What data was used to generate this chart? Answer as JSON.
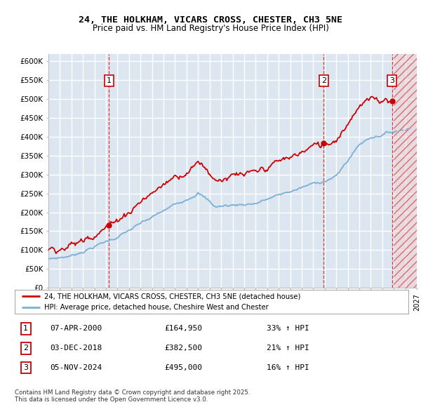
{
  "title": "24, THE HOLKHAM, VICARS CROSS, CHESTER, CH3 5NE",
  "subtitle": "Price paid vs. HM Land Registry's House Price Index (HPI)",
  "ylim": [
    0,
    620000
  ],
  "yticks": [
    0,
    50000,
    100000,
    150000,
    200000,
    250000,
    300000,
    350000,
    400000,
    450000,
    500000,
    550000,
    600000
  ],
  "xlim_start": 1995.0,
  "xlim_end": 2027.0,
  "plot_bg_color": "#dce6f1",
  "grid_color": "#ffffff",
  "red_color": "#cc0000",
  "blue_color": "#7bafd4",
  "legend_label_red": "24, THE HOLKHAM, VICARS CROSS, CHESTER, CH3 5NE (detached house)",
  "legend_label_blue": "HPI: Average price, detached house, Cheshire West and Chester",
  "sale1_date": "07-APR-2000",
  "sale1_price": "£164,950",
  "sale1_hpi": "33% ↑ HPI",
  "sale2_date": "03-DEC-2018",
  "sale2_price": "£382,500",
  "sale2_hpi": "21% ↑ HPI",
  "sale3_date": "05-NOV-2024",
  "sale3_price": "£495,000",
  "sale3_hpi": "16% ↑ HPI",
  "footer": "Contains HM Land Registry data © Crown copyright and database right 2025.\nThis data is licensed under the Open Government Licence v3.0.",
  "sale_points": [
    {
      "year": 2000.25,
      "price": 164950,
      "label": "1"
    },
    {
      "year": 2018.92,
      "price": 382500,
      "label": "2"
    },
    {
      "year": 2024.84,
      "price": 495000,
      "label": "3"
    }
  ],
  "hatch_start": 2025.0
}
